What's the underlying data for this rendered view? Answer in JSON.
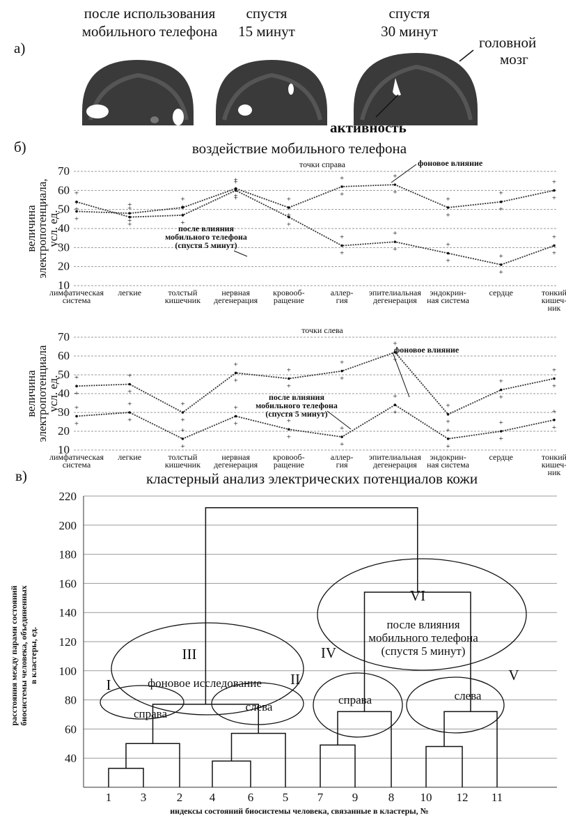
{
  "panel_a": {
    "label": "а)",
    "captions": [
      "после использования",
      "мобильного телефона",
      "спустя",
      "15 минут",
      "спустя",
      "30 минут"
    ],
    "brain_label_1": "головной",
    "brain_label_2": "мозг",
    "activity_label": "активность"
  },
  "panel_b": {
    "label": "б)",
    "title": "воздействие мобильного телефона"
  },
  "panel_c": {
    "label": "в)",
    "title": "кластерный анализ электрических потенциалов кожи"
  },
  "chart_data": [
    {
      "type": "line",
      "title": "точки справа",
      "ylabel": [
        "величина",
        "электропотенциала,",
        "усл. ед."
      ],
      "ylim": [
        10,
        70
      ],
      "yticks": [
        10,
        20,
        30,
        40,
        50,
        60,
        70
      ],
      "grid": true,
      "categories": [
        "лимфатическая система",
        "легкие",
        "толстый кишечник",
        "нервная дегенерация",
        "кровообращение",
        "аллергия",
        "эпителиальная дегенерация",
        "эндокринная система",
        "сердце",
        "тонкий кишечник"
      ],
      "tick_labels": [
        [
          "лимфатическая",
          "система"
        ],
        [
          "легкие"
        ],
        [
          "толстый",
          "кишечник"
        ],
        [
          "нервная",
          "дегенерация"
        ],
        [
          "кровооб-",
          "ращение"
        ],
        [
          "аллер-",
          "гия"
        ],
        [
          "эпителиальная",
          "дегенерация"
        ],
        [
          "эндокрин-",
          "ная система"
        ],
        [
          "сердце"
        ],
        [
          "тонкий",
          "кишеч-",
          "ник"
        ]
      ],
      "series": [
        {
          "name": "фоновое влияние",
          "values": [
            49,
            48,
            51,
            61,
            51,
            62,
            63,
            51,
            54,
            60
          ]
        },
        {
          "name": "после влияния мобильного телефона (спустя 5 минут)",
          "values": [
            54,
            46,
            47,
            60,
            46,
            31,
            33,
            27,
            21,
            31
          ]
        }
      ],
      "annotations": [
        {
          "text": "фоновое влияние"
        },
        {
          "text": [
            "после влияния",
            "мобильного телефона",
            "(спустя 5 минут)"
          ]
        }
      ]
    },
    {
      "type": "line",
      "title": "точки слева",
      "ylabel": [
        "величина",
        "электропотенциала",
        "усл. ед."
      ],
      "ylim": [
        10,
        70
      ],
      "yticks": [
        10,
        20,
        30,
        40,
        50,
        60,
        70
      ],
      "grid": true,
      "categories": [
        "лимфатическая система",
        "легкие",
        "толстый кишечник",
        "нервная дегенерация",
        "кровообращение",
        "аллергия",
        "эпителиальная дегенерация",
        "эндокринная система",
        "сердце",
        "тонкий кишечник"
      ],
      "tick_labels": [
        [
          "лимфатическая",
          "система"
        ],
        [
          "легкие"
        ],
        [
          "толстый",
          "кишечник"
        ],
        [
          "нервная",
          "дегенерация"
        ],
        [
          "кровооб-",
          "ращение"
        ],
        [
          "аллер-",
          "гия"
        ],
        [
          "эпителиальная",
          "дегенерация"
        ],
        [
          "эндокрин-",
          "ная система"
        ],
        [
          "сердце"
        ],
        [
          "тонкий",
          "кишеч-",
          "ник"
        ]
      ],
      "series": [
        {
          "name": "фоновое влияние",
          "values": [
            44,
            45,
            30,
            51,
            48,
            52,
            62,
            29,
            42,
            48
          ]
        },
        {
          "name": "после влияния мобильного телефона (спустя 5 минут)",
          "values": [
            28,
            30,
            16,
            28,
            21,
            17,
            34,
            16,
            20,
            26
          ]
        }
      ],
      "annotations": [
        {
          "text": "фоновое влияние"
        },
        {
          "text": [
            "после влияния",
            "мобильного телефона",
            "(спустя 5 минут)"
          ]
        }
      ]
    },
    {
      "type": "dendrogram",
      "ylabel": [
        "расстояния между парами состояний",
        "биосистемы человека, объединенных",
        "в кластеры, ед."
      ],
      "xlabel": "индексы состояний биосистемы человека, связанные в кластеры, №",
      "ylim": [
        20,
        220
      ],
      "yticks": [
        40,
        60,
        80,
        100,
        120,
        140,
        160,
        180,
        200,
        220
      ],
      "leaf_order": [
        "1",
        "3",
        "2",
        "4",
        "6",
        "5",
        "7",
        "9",
        "8",
        "10",
        "12",
        "11"
      ],
      "merges": [
        {
          "a": "1",
          "b": "3",
          "height": 33
        },
        {
          "a": "(1,3)",
          "b": "2",
          "height": 50
        },
        {
          "a": "4",
          "b": "6",
          "height": 38
        },
        {
          "a": "(4,6)",
          "b": "5",
          "height": 57
        },
        {
          "a": "(1,3,2)",
          "b": "(4,6,5)",
          "height": 77
        },
        {
          "a": "7",
          "b": "9",
          "height": 49
        },
        {
          "a": "(7,9)",
          "b": "8",
          "height": 72
        },
        {
          "a": "10",
          "b": "12",
          "height": 48
        },
        {
          "a": "(10,12)",
          "b": "11",
          "height": 72
        },
        {
          "a": "(7,9,8)",
          "b": "(10,12,11)",
          "height": 154
        },
        {
          "a": "I–III",
          "b": "IV–VI",
          "height": 212
        }
      ],
      "clusters": [
        {
          "roman": "I",
          "label": "справа"
        },
        {
          "roman": "II",
          "label": "слева"
        },
        {
          "roman": "III",
          "label": "фоновое исследование"
        },
        {
          "roman": "IV",
          "label": "справа"
        },
        {
          "roman": "V",
          "label": "слева"
        },
        {
          "roman": "VI",
          "label": [
            "после влияния",
            "мобильного телефона",
            "(спустя 5 минут)"
          ]
        }
      ]
    }
  ]
}
